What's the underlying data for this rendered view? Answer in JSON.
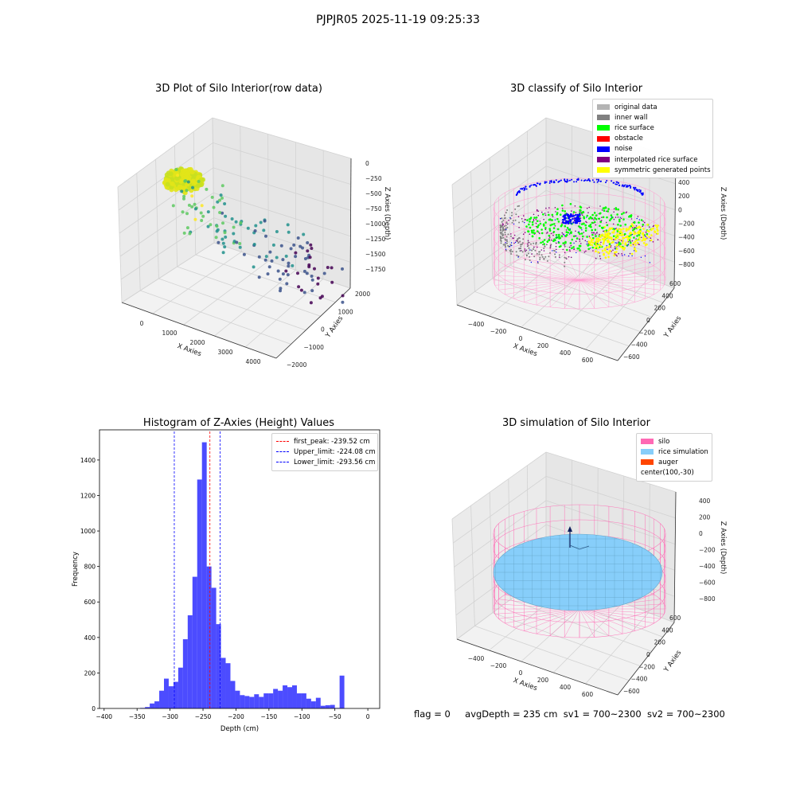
{
  "figure": {
    "suptitle": "PJPJR05 2025-11-19 09:25:33",
    "status": {
      "flag": "flag = 0",
      "avg_depth": "avgDepth = 235 cm",
      "sv1": "sv1 = 700~2300",
      "sv2": "sv2 = 700~2300"
    }
  },
  "chart_data": [
    {
      "type": "scatter",
      "title": "3D Plot of Silo Interior(row data)",
      "xlabel": "X Axies",
      "ylabel": "Y Axies",
      "zlabel": "Z Axies (Depth)",
      "x_ticks": [
        "0",
        "1000",
        "2000",
        "3000",
        "4000"
      ],
      "y_ticks": [
        "−2000",
        "−1000",
        "0",
        "1000",
        "2000"
      ],
      "z_ticks": [
        "0",
        "−250",
        "−500",
        "−750",
        "−1000",
        "−1250",
        "−1500",
        "−1750"
      ],
      "colormap": "viridis",
      "note_cluster": "dense yellow-green cluster near Z = -250"
    },
    {
      "type": "scatter",
      "title": "3D classify of Silo Interior",
      "xlabel": "X Axies",
      "ylabel": "Y Axies",
      "zlabel": "Z Axies (Depth)",
      "x_ticks": [
        "−400",
        "−200",
        "0",
        "200",
        "400",
        "600"
      ],
      "y_ticks": [
        "−600",
        "−400",
        "−200",
        "0",
        "200",
        "400",
        "600"
      ],
      "z_ticks": [
        "400",
        "200",
        "0",
        "−200",
        "−400",
        "−600",
        "−800"
      ],
      "legend": [
        {
          "label": "original data",
          "color": "#b4b4b4"
        },
        {
          "label": "inner wall",
          "color": "#808080"
        },
        {
          "label": "rice surface",
          "color": "#00ff00"
        },
        {
          "label": "obstacle",
          "color": "#ff0000"
        },
        {
          "label": "noise",
          "color": "#0000ff"
        },
        {
          "label": "interpolated rice surface",
          "color": "#800080"
        },
        {
          "label": "symmetric generated points",
          "color": "#ffff00"
        }
      ],
      "wire_color": "#ff9ccf"
    },
    {
      "type": "bar",
      "title": "Histogram of Z-Axies (Height) Values",
      "xlabel": "Depth (cm)",
      "ylabel": "Frequency",
      "xlim": [
        -407,
        18
      ],
      "ylim": [
        0,
        1570
      ],
      "x_ticks": [
        -400,
        -350,
        -300,
        -250,
        -200,
        -150,
        -100,
        -50,
        0
      ],
      "y_ticks": [
        0,
        200,
        400,
        600,
        800,
        1000,
        1200,
        1400
      ],
      "bar_color": "#0000ff",
      "bin_start": -410,
      "bin_width": 7.2,
      "values": [
        0,
        0,
        0,
        0,
        0,
        0,
        0,
        0,
        0,
        3,
        8,
        28,
        40,
        100,
        168,
        125,
        150,
        230,
        390,
        525,
        742,
        1290,
        1500,
        800,
        680,
        475,
        285,
        255,
        155,
        100,
        75,
        70,
        65,
        80,
        65,
        85,
        85,
        110,
        100,
        130,
        120,
        130,
        85,
        85,
        55,
        40,
        60,
        15,
        18,
        20,
        3,
        185
      ],
      "lines": [
        {
          "label": "first_peak: -239.52 cm",
          "x": -239.52,
          "color": "#ff0000"
        },
        {
          "label": "Upper_limit: -224.08 cm",
          "x": -224.08,
          "color": "#0000ff"
        },
        {
          "label": "Lower_limit: -293.56 cm",
          "x": -293.56,
          "color": "#0000ff"
        }
      ]
    },
    {
      "type": "surface",
      "title": "3D simulation of Silo Interior",
      "xlabel": "X Axies",
      "ylabel": "Y Axies",
      "zlabel": "Z Axies (Depth)",
      "x_ticks": [
        "−400",
        "−200",
        "0",
        "200",
        "400",
        "600"
      ],
      "y_ticks": [
        "−600",
        "−400",
        "−200",
        "0",
        "200",
        "400",
        "600"
      ],
      "z_ticks": [
        "400",
        "200",
        "0",
        "−200",
        "−400",
        "−600",
        "−800"
      ],
      "legend": [
        {
          "label": "silo",
          "color": "#ff69b4"
        },
        {
          "label": "rice simulation",
          "color": "#87cefa"
        },
        {
          "label": "auger",
          "color": "#ff4500"
        },
        {
          "label": "center(100,-30)",
          "color": ""
        }
      ]
    }
  ]
}
